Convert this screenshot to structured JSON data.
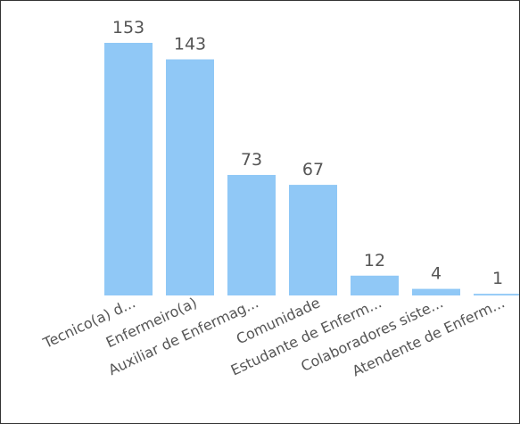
{
  "chart_data": {
    "type": "bar",
    "title": "",
    "xlabel": "",
    "ylabel": "",
    "categories": [
      "Tecnico(a) d...",
      "Enfermeiro(a)",
      "Auxiliar de Enfermag...",
      "Comunidade",
      "Estudante de Enferm...",
      "Colaboradores siste...",
      "Atendente de Enferm..."
    ],
    "values": [
      153,
      143,
      73,
      67,
      12,
      4,
      1
    ],
    "ylim": [
      0,
      153
    ],
    "bar_color": "#90C8F6",
    "grid": false,
    "legend": "none"
  }
}
